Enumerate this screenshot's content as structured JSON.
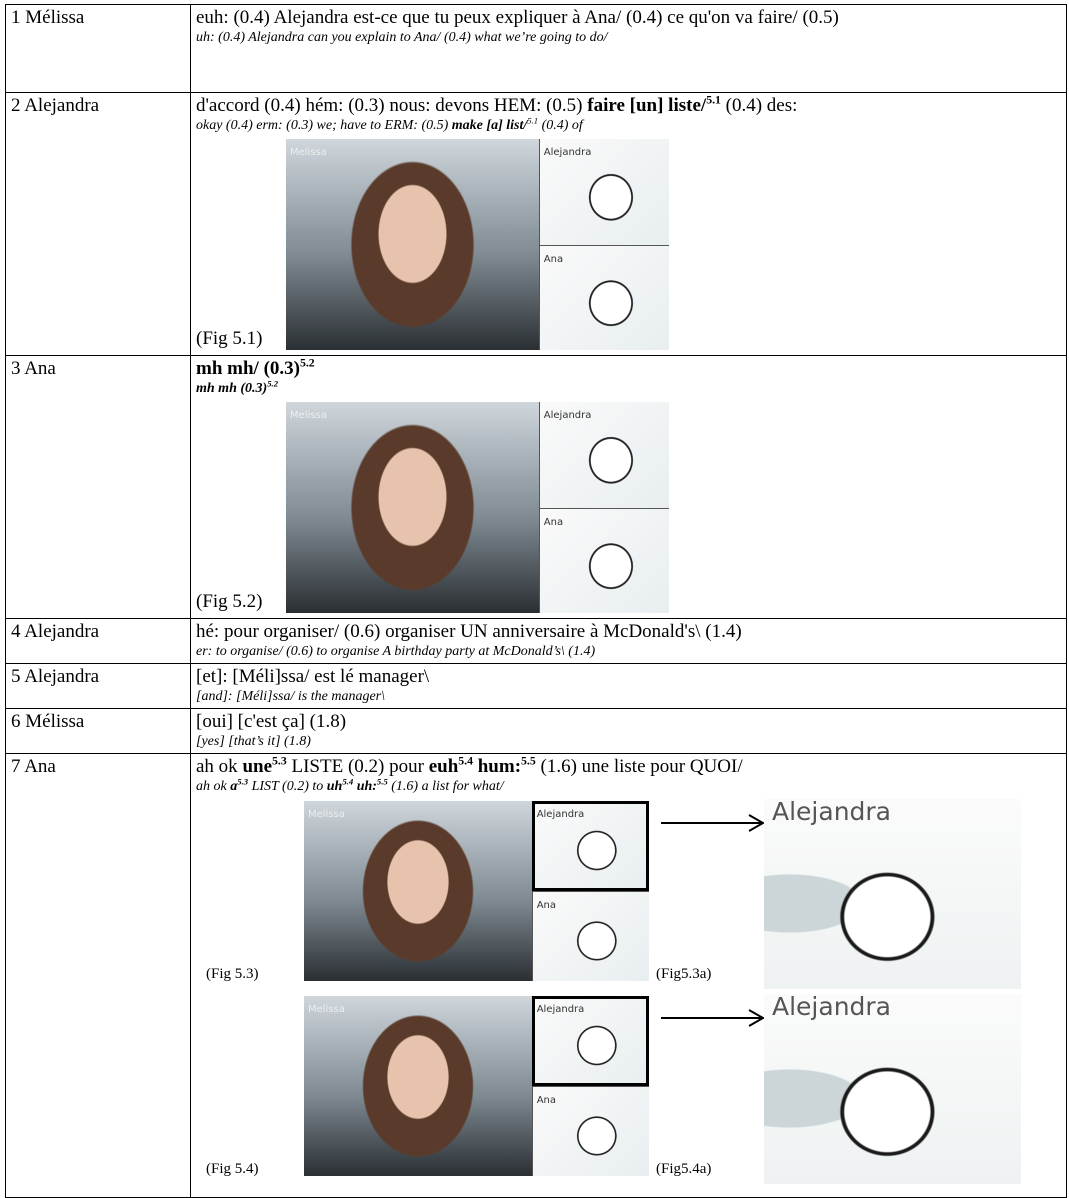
{
  "table": {
    "rows": [
      {
        "speaker": "1 Mélissa",
        "original": [
          {
            "t": "euh: (0.4) Alejandra est-ce que tu peux expliquer à Ana/ (0.4) ce qu'on va faire/ (0.5)"
          }
        ],
        "translation": [
          {
            "t": "uh: (0.4) Alejandra can you explain to Ana/ (0.4) what we’re going to do/"
          }
        ]
      },
      {
        "speaker": "2 Alejandra",
        "original": [
          {
            "t": "d'accord (0.4) hém: (0.3) nous: devons HEM: (0.5) "
          },
          {
            "t": "faire [un] liste/",
            "b": true
          },
          {
            "t": "5.1",
            "b": true,
            "sup": true
          },
          {
            "t": " (0.4) des:"
          }
        ],
        "translation": [
          {
            "t": "okay (0.4) erm: (0.3) we; have to ERM: (0.5) "
          },
          {
            "t": "make [a] list/",
            "b": true
          },
          {
            "t": "5.1",
            "sup": true
          },
          {
            "t": " (0.4) of"
          }
        ],
        "figures": [
          {
            "caption": "(Fig 5.1)",
            "labels": [
              "Melissa",
              "Alejandra",
              "Ana"
            ]
          }
        ]
      },
      {
        "speaker": "3 Ana",
        "original": [
          {
            "t": "mh mh/ (0.3)",
            "b": true
          },
          {
            "t": "5.2",
            "b": true,
            "sup": true
          }
        ],
        "translation": [
          {
            "t": "mh mh (0.3)",
            "b": true
          },
          {
            "t": "5.2",
            "b": true,
            "sup": true
          }
        ],
        "figures": [
          {
            "caption": "(Fig 5.2)",
            "labels": [
              "Melissa",
              "Alejandra",
              "Ana"
            ]
          }
        ]
      },
      {
        "speaker": "4 Alejandra",
        "original": [
          {
            "t": "hé: pour organiser/ (0.6) organiser UN anniversaire à McDonald's\\ (1.4)"
          }
        ],
        "translation": [
          {
            "t": "er: to organise/ (0.6) to organise A birthday party at McDonald’s\\ (1.4)"
          }
        ]
      },
      {
        "speaker": "5 Alejandra",
        "original": [
          {
            "t": "[et]: [Méli]ssa/ est lé manager\\"
          }
        ],
        "translation": [
          {
            "t": "[and]: [Méli]ssa/ is the manager\\"
          }
        ]
      },
      {
        "speaker": "6 Mélissa",
        "original": [
          {
            "t": "[oui] [c'est ça] (1.8)"
          }
        ],
        "translation": [
          {
            "t": "[yes] [that’s it] (1.8)"
          }
        ]
      },
      {
        "speaker": "7 Ana",
        "original": [
          {
            "t": "ah ok "
          },
          {
            "t": "une",
            "b": true
          },
          {
            "t": "5.3",
            "b": true,
            "sup": true
          },
          {
            "t": " LISTE (0.2) pour "
          },
          {
            "t": "euh",
            "b": true
          },
          {
            "t": "5.4",
            "b": true,
            "sup": true
          },
          {
            "t": " hum:",
            "b": true
          },
          {
            "t": "5.5",
            "b": true,
            "sup": true
          },
          {
            "t": " (1.6) une liste pour QUOI/"
          }
        ],
        "translation": [
          {
            "t": "ah ok "
          },
          {
            "t": "a",
            "b": true
          },
          {
            "t": "5.3",
            "b": true,
            "sup": true
          },
          {
            "t": " LIST (0.2) to "
          },
          {
            "t": "uh",
            "b": true
          },
          {
            "t": "5.4",
            "b": true,
            "sup": true
          },
          {
            "t": " uh:",
            "b": true
          },
          {
            "t": "5.5",
            "b": true,
            "sup": true
          },
          {
            "t": " (1.6) a list for what/"
          }
        ],
        "figures": [
          {
            "caption": "(Fig 5.3)",
            "labels": [
              "Melissa",
              "Alejandra",
              "Ana"
            ],
            "zoom_caption": "(Fig5.3a)",
            "zoom_label": "Alejandra"
          },
          {
            "caption": "(Fig 5.4)",
            "labels": [
              "Melissa",
              "Alejandra",
              "Ana"
            ],
            "zoom_caption": "(Fig5.4a)",
            "zoom_label": "Alejandra"
          }
        ]
      }
    ]
  }
}
